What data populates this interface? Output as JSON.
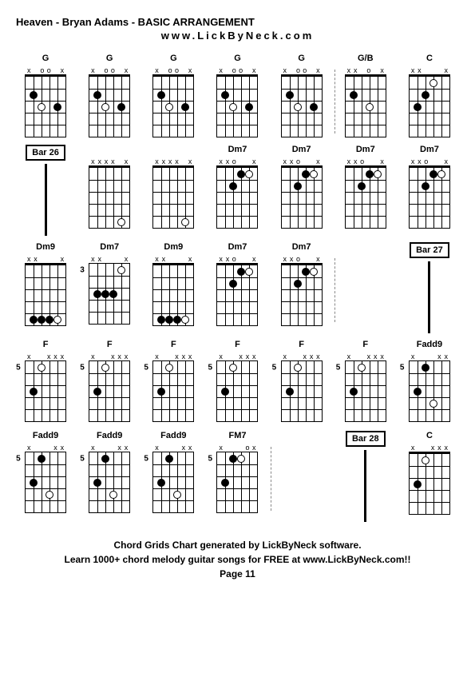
{
  "title": "Heaven - Bryan Adams - BASIC ARRANGEMENT",
  "site": "www.LickByNeck.com",
  "footer_line1": "Chord Grids Chart generated by LickByNeck software.",
  "footer_line2": "Learn 1000+ chord melody guitar songs for FREE at www.LickByNeck.com!!",
  "page_label": "Page 11",
  "colors": {
    "bg": "#ffffff",
    "fg": "#000000"
  },
  "rows": [
    [
      {
        "type": "chord",
        "name": "G",
        "markers": [
          "x",
          "",
          "o",
          "o",
          "",
          "x"
        ],
        "fretNum": null,
        "dots": [
          {
            "s": 1,
            "f": 3,
            "t": "f"
          },
          {
            "s": 3,
            "f": 3,
            "t": "o"
          },
          {
            "s": 4,
            "f": 2,
            "t": "f"
          }
        ],
        "sep": false
      },
      {
        "type": "chord",
        "name": "G",
        "markers": [
          "x",
          "",
          "o",
          "o",
          "",
          "x"
        ],
        "fretNum": null,
        "dots": [
          {
            "s": 1,
            "f": 3,
            "t": "f"
          },
          {
            "s": 3,
            "f": 3,
            "t": "o"
          },
          {
            "s": 4,
            "f": 2,
            "t": "f"
          }
        ],
        "sep": false
      },
      {
        "type": "chord",
        "name": "G",
        "markers": [
          "x",
          "",
          "o",
          "o",
          "",
          "x"
        ],
        "fretNum": null,
        "dots": [
          {
            "s": 1,
            "f": 3,
            "t": "f"
          },
          {
            "s": 3,
            "f": 3,
            "t": "o"
          },
          {
            "s": 4,
            "f": 2,
            "t": "f"
          }
        ],
        "sep": false
      },
      {
        "type": "chord",
        "name": "G",
        "markers": [
          "x",
          "",
          "o",
          "o",
          "",
          "x"
        ],
        "fretNum": null,
        "dots": [
          {
            "s": 1,
            "f": 3,
            "t": "f"
          },
          {
            "s": 3,
            "f": 3,
            "t": "o"
          },
          {
            "s": 4,
            "f": 2,
            "t": "f"
          }
        ],
        "sep": false
      },
      {
        "type": "chord",
        "name": "G",
        "markers": [
          "x",
          "",
          "o",
          "o",
          "",
          "x"
        ],
        "fretNum": null,
        "dots": [
          {
            "s": 1,
            "f": 3,
            "t": "f"
          },
          {
            "s": 3,
            "f": 3,
            "t": "o"
          },
          {
            "s": 4,
            "f": 2,
            "t": "f"
          }
        ],
        "sep": true
      },
      {
        "type": "chord",
        "name": "G/B",
        "markers": [
          "x",
          "x",
          "",
          "o",
          "",
          "x"
        ],
        "fretNum": null,
        "dots": [
          {
            "s": 2,
            "f": 3,
            "t": "o"
          },
          {
            "s": 4,
            "f": 2,
            "t": "f"
          }
        ],
        "sep": false
      },
      {
        "type": "chord",
        "name": "C",
        "markers": [
          "x",
          "x",
          "",
          "",
          "",
          "x"
        ],
        "fretNum": null,
        "dots": [
          {
            "s": 2,
            "f": 1,
            "t": "o"
          },
          {
            "s": 3,
            "f": 2,
            "t": "f"
          },
          {
            "s": 4,
            "f": 3,
            "t": "f"
          }
        ],
        "sep": false
      }
    ],
    [
      {
        "type": "bar",
        "label": "Bar 26"
      },
      {
        "type": "chord",
        "name": "",
        "markers": [
          "x",
          "x",
          "x",
          "x",
          "",
          "x"
        ],
        "fretNum": null,
        "dots": [
          {
            "s": 1,
            "f": 5,
            "t": "o"
          }
        ],
        "sep": false
      },
      {
        "type": "chord",
        "name": "",
        "markers": [
          "x",
          "x",
          "x",
          "x",
          "",
          "x"
        ],
        "fretNum": null,
        "dots": [
          {
            "s": 1,
            "f": 5,
            "t": "o"
          }
        ],
        "sep": false
      },
      {
        "type": "chord",
        "name": "Dm7",
        "markers": [
          "x",
          "x",
          "o",
          "",
          "",
          "x"
        ],
        "fretNum": null,
        "dots": [
          {
            "s": 1,
            "f": 1,
            "t": "o"
          },
          {
            "s": 2,
            "f": 1,
            "t": "f"
          },
          {
            "s": 3,
            "f": 2,
            "t": "f"
          }
        ],
        "sep": false
      },
      {
        "type": "chord",
        "name": "Dm7",
        "markers": [
          "x",
          "x",
          "o",
          "",
          "",
          "x"
        ],
        "fretNum": null,
        "dots": [
          {
            "s": 1,
            "f": 1,
            "t": "o"
          },
          {
            "s": 2,
            "f": 1,
            "t": "f"
          },
          {
            "s": 3,
            "f": 2,
            "t": "f"
          }
        ],
        "sep": false
      },
      {
        "type": "chord",
        "name": "Dm7",
        "markers": [
          "x",
          "x",
          "o",
          "",
          "",
          "x"
        ],
        "fretNum": null,
        "dots": [
          {
            "s": 1,
            "f": 1,
            "t": "o"
          },
          {
            "s": 2,
            "f": 1,
            "t": "f"
          },
          {
            "s": 3,
            "f": 2,
            "t": "f"
          }
        ],
        "sep": false
      },
      {
        "type": "chord",
        "name": "Dm7",
        "markers": [
          "x",
          "x",
          "o",
          "",
          "",
          "x"
        ],
        "fretNum": null,
        "dots": [
          {
            "s": 1,
            "f": 1,
            "t": "o"
          },
          {
            "s": 2,
            "f": 1,
            "t": "f"
          },
          {
            "s": 3,
            "f": 2,
            "t": "f"
          }
        ],
        "sep": false
      }
    ],
    [
      {
        "type": "chord",
        "name": "Dm9",
        "markers": [
          "x",
          "x",
          "",
          "",
          "",
          "x"
        ],
        "fretNum": null,
        "dots": [
          {
            "s": 1,
            "f": 5,
            "t": "o"
          },
          {
            "s": 2,
            "f": 5,
            "t": "f"
          },
          {
            "s": 3,
            "f": 5,
            "t": "f"
          },
          {
            "s": 4,
            "f": 5,
            "t": "f"
          }
        ],
        "sep": false
      },
      {
        "type": "chord",
        "name": "Dm7",
        "markers": [
          "x",
          "x",
          "",
          "",
          "",
          "x"
        ],
        "fretNum": 3,
        "dots": [
          {
            "s": 1,
            "f": 1,
            "t": "o"
          },
          {
            "s": 2,
            "f": 3,
            "t": "f"
          },
          {
            "s": 3,
            "f": 3,
            "t": "f"
          },
          {
            "s": 4,
            "f": 3,
            "t": "f"
          }
        ],
        "sep": false
      },
      {
        "type": "chord",
        "name": "Dm9",
        "markers": [
          "x",
          "x",
          "",
          "",
          "",
          "x"
        ],
        "fretNum": null,
        "dots": [
          {
            "s": 1,
            "f": 5,
            "t": "o"
          },
          {
            "s": 2,
            "f": 5,
            "t": "f"
          },
          {
            "s": 3,
            "f": 5,
            "t": "f"
          },
          {
            "s": 4,
            "f": 5,
            "t": "f"
          }
        ],
        "sep": false
      },
      {
        "type": "chord",
        "name": "Dm7",
        "markers": [
          "x",
          "x",
          "o",
          "",
          "",
          "x"
        ],
        "fretNum": null,
        "dots": [
          {
            "s": 1,
            "f": 1,
            "t": "o"
          },
          {
            "s": 2,
            "f": 1,
            "t": "f"
          },
          {
            "s": 3,
            "f": 2,
            "t": "f"
          }
        ],
        "sep": false
      },
      {
        "type": "chord",
        "name": "Dm7",
        "markers": [
          "x",
          "x",
          "o",
          "",
          "",
          "x"
        ],
        "fretNum": null,
        "dots": [
          {
            "s": 1,
            "f": 1,
            "t": "o"
          },
          {
            "s": 2,
            "f": 1,
            "t": "f"
          },
          {
            "s": 3,
            "f": 2,
            "t": "f"
          }
        ],
        "sep": true
      },
      {
        "type": "empty"
      },
      {
        "type": "bar",
        "label": "Bar 27"
      }
    ],
    [
      {
        "type": "chord",
        "name": "F",
        "markers": [
          "x",
          "",
          "",
          "x",
          "x",
          "x"
        ],
        "fretNum": 5,
        "dots": [
          {
            "s": 3,
            "f": 1,
            "t": "o"
          },
          {
            "s": 4,
            "f": 3,
            "t": "f"
          }
        ],
        "sep": false
      },
      {
        "type": "chord",
        "name": "F",
        "markers": [
          "x",
          "",
          "",
          "x",
          "x",
          "x"
        ],
        "fretNum": 5,
        "dots": [
          {
            "s": 3,
            "f": 1,
            "t": "o"
          },
          {
            "s": 4,
            "f": 3,
            "t": "f"
          }
        ],
        "sep": false
      },
      {
        "type": "chord",
        "name": "F",
        "markers": [
          "x",
          "",
          "",
          "x",
          "x",
          "x"
        ],
        "fretNum": 5,
        "dots": [
          {
            "s": 3,
            "f": 1,
            "t": "o"
          },
          {
            "s": 4,
            "f": 3,
            "t": "f"
          }
        ],
        "sep": false
      },
      {
        "type": "chord",
        "name": "F",
        "markers": [
          "x",
          "",
          "",
          "x",
          "x",
          "x"
        ],
        "fretNum": 5,
        "dots": [
          {
            "s": 3,
            "f": 1,
            "t": "o"
          },
          {
            "s": 4,
            "f": 3,
            "t": "f"
          }
        ],
        "sep": false
      },
      {
        "type": "chord",
        "name": "F",
        "markers": [
          "x",
          "",
          "",
          "x",
          "x",
          "x"
        ],
        "fretNum": 5,
        "dots": [
          {
            "s": 3,
            "f": 1,
            "t": "o"
          },
          {
            "s": 4,
            "f": 3,
            "t": "f"
          }
        ],
        "sep": false
      },
      {
        "type": "chord",
        "name": "F",
        "markers": [
          "x",
          "",
          "",
          "x",
          "x",
          "x"
        ],
        "fretNum": 5,
        "dots": [
          {
            "s": 3,
            "f": 1,
            "t": "o"
          },
          {
            "s": 4,
            "f": 3,
            "t": "f"
          }
        ],
        "sep": false
      },
      {
        "type": "chord",
        "name": "Fadd9",
        "markers": [
          "x",
          "",
          "",
          "",
          "x",
          "x"
        ],
        "fretNum": 5,
        "dots": [
          {
            "s": 2,
            "f": 4,
            "t": "o"
          },
          {
            "s": 3,
            "f": 1,
            "t": "f"
          },
          {
            "s": 4,
            "f": 3,
            "t": "f"
          }
        ],
        "sep": false
      }
    ],
    [
      {
        "type": "chord",
        "name": "Fadd9",
        "markers": [
          "x",
          "",
          "",
          "",
          "x",
          "x"
        ],
        "fretNum": 5,
        "dots": [
          {
            "s": 2,
            "f": 4,
            "t": "o"
          },
          {
            "s": 3,
            "f": 1,
            "t": "f"
          },
          {
            "s": 4,
            "f": 3,
            "t": "f"
          }
        ],
        "sep": false
      },
      {
        "type": "chord",
        "name": "Fadd9",
        "markers": [
          "x",
          "",
          "",
          "",
          "x",
          "x"
        ],
        "fretNum": 5,
        "dots": [
          {
            "s": 2,
            "f": 4,
            "t": "o"
          },
          {
            "s": 3,
            "f": 1,
            "t": "f"
          },
          {
            "s": 4,
            "f": 3,
            "t": "f"
          }
        ],
        "sep": false
      },
      {
        "type": "chord",
        "name": "Fadd9",
        "markers": [
          "x",
          "",
          "",
          "",
          "x",
          "x"
        ],
        "fretNum": 5,
        "dots": [
          {
            "s": 2,
            "f": 4,
            "t": "o"
          },
          {
            "s": 3,
            "f": 1,
            "t": "f"
          },
          {
            "s": 4,
            "f": 3,
            "t": "f"
          }
        ],
        "sep": false
      },
      {
        "type": "chord",
        "name": "FM7",
        "markers": [
          "x",
          "",
          "",
          "",
          "o",
          "x"
        ],
        "fretNum": 5,
        "dots": [
          {
            "s": 2,
            "f": 1,
            "t": "o"
          },
          {
            "s": 3,
            "f": 1,
            "t": "f"
          },
          {
            "s": 4,
            "f": 3,
            "t": "f"
          }
        ],
        "sep": true
      },
      {
        "type": "empty"
      },
      {
        "type": "bar",
        "label": "Bar 28"
      },
      {
        "type": "chord",
        "name": "C",
        "markers": [
          "x",
          "",
          "",
          "x",
          "x",
          "x"
        ],
        "fretNum": null,
        "dots": [
          {
            "s": 3,
            "f": 1,
            "t": "o"
          },
          {
            "s": 4,
            "f": 3,
            "t": "f"
          }
        ],
        "sep": false
      }
    ]
  ]
}
